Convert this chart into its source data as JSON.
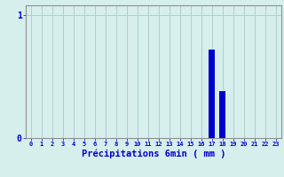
{
  "hours": [
    0,
    1,
    2,
    3,
    4,
    5,
    6,
    7,
    8,
    9,
    10,
    11,
    12,
    13,
    14,
    15,
    16,
    17,
    18,
    19,
    20,
    21,
    22,
    23
  ],
  "values": [
    0,
    0,
    0,
    0,
    0,
    0,
    0,
    0,
    0,
    0,
    0,
    0,
    0,
    0,
    0,
    0,
    0,
    0.72,
    0.38,
    0,
    0,
    0,
    0,
    0
  ],
  "bar_color": "#0000cc",
  "background_color": "#d6eeec",
  "grid_color": "#aed0ce",
  "xlabel": "Précipitations 6min ( mm )",
  "xlabel_color": "#0000cc",
  "tick_color": "#0000cc",
  "ylim": [
    0,
    1.08
  ],
  "xlim": [
    -0.5,
    23.5
  ],
  "yticks": [
    0,
    1
  ],
  "bar_width": 0.6,
  "figsize": [
    3.2,
    2.0
  ],
  "dpi": 100
}
